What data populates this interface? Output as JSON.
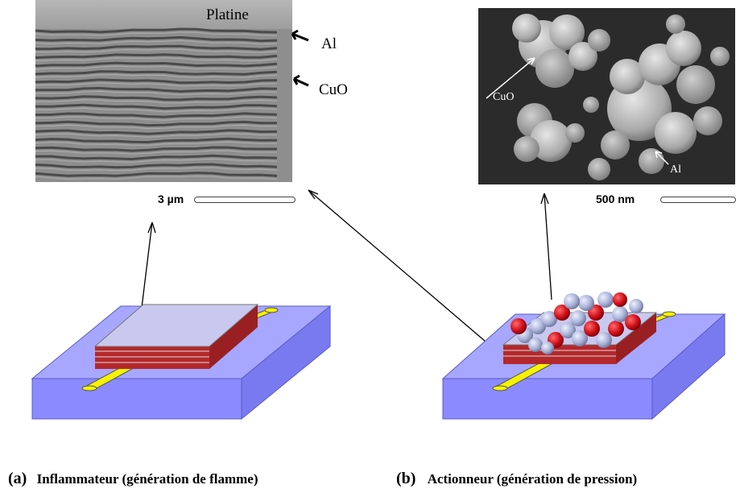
{
  "sem_left": {
    "top_label": "Platine",
    "arrow_labels": [
      "Al",
      "CuO"
    ],
    "scale": "3 µm"
  },
  "sem_right": {
    "labels": [
      "CuO",
      "Al"
    ],
    "scale": "500 nm"
  },
  "captions": {
    "a_tag": "(a)",
    "a_text": "Inflammateur (génération de flamme)",
    "b_tag": "(b)",
    "b_text": "Actionneur (génération de pression)"
  },
  "colors": {
    "substrate": "#8b8bff",
    "heater": "#f5f300",
    "layer_red": "#b4282c",
    "layer_top": "#c9c9ef",
    "particle_red": "#d0101a",
    "particle_grey": "#aab3d8"
  }
}
